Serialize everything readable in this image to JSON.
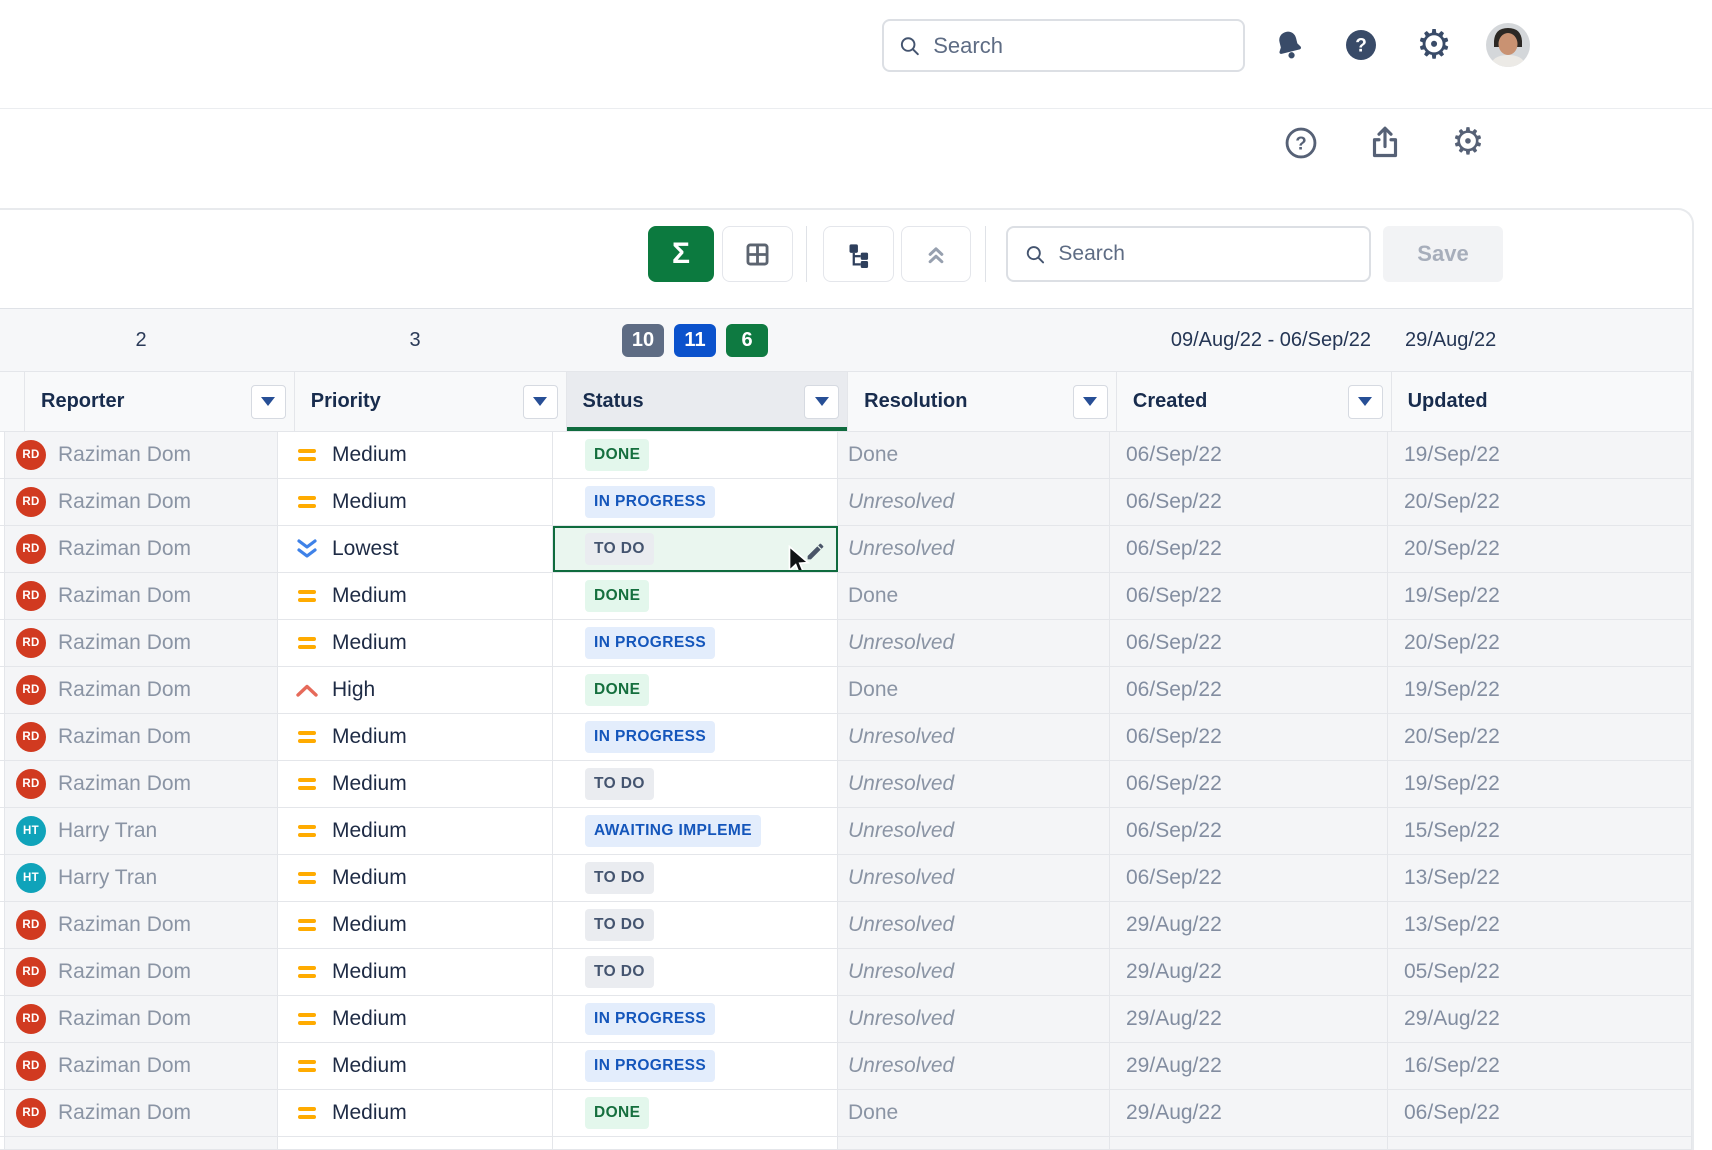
{
  "topbar": {
    "search_placeholder": "Search",
    "icons": [
      "notifications-bell",
      "help",
      "settings-gear",
      "user-avatar"
    ]
  },
  "page_actions": {
    "icons": [
      "help-circle",
      "share-export",
      "settings-gear"
    ]
  },
  "toolbar": {
    "buttons": [
      "sum-sigma",
      "grid-view",
      "tree-view",
      "collapse-all"
    ],
    "search_placeholder": "Search",
    "save_label": "Save"
  },
  "summary": {
    "reporter_count": "2",
    "priority_count": "3",
    "status_counts": [
      {
        "value": "10",
        "color": "#5E6C84"
      },
      {
        "value": "11",
        "color": "#0B52CC"
      },
      {
        "value": "6",
        "color": "#0E7A41"
      }
    ],
    "created_range": "09/Aug/22 - 06/Sep/22",
    "updated_value": "29/Aug/22"
  },
  "columns": [
    {
      "key": "reporter",
      "label": "Reporter",
      "has_dropdown": true
    },
    {
      "key": "priority",
      "label": "Priority",
      "has_dropdown": true
    },
    {
      "key": "status",
      "label": "Status",
      "has_dropdown": true
    },
    {
      "key": "resolution",
      "label": "Resolution",
      "has_dropdown": true
    },
    {
      "key": "created",
      "label": "Created",
      "has_dropdown": true
    },
    {
      "key": "updated",
      "label": "Updated",
      "has_dropdown": false
    }
  ],
  "status_styles": {
    "done": {
      "bg": "#E3F7EC",
      "fg": "#156F3E"
    },
    "inprogress": {
      "bg": "#E3EDFC",
      "fg": "#1456BB"
    },
    "todo": {
      "bg": "#EAECF0",
      "fg": "#44546F"
    }
  },
  "priority_colors": {
    "medium": "#FFAB00",
    "high": "#E66A5A",
    "lowest": "#3F82E8"
  },
  "colors": {
    "selection_green": "#0F6B3E",
    "sigma_green": "#0C7A3F",
    "border": "#E4E6EA"
  },
  "rows": [
    {
      "initials": "RD",
      "name": "Raziman Dom",
      "avatar_color": "#D13A20",
      "priority": "Medium",
      "priority_icon": "medium",
      "status": "DONE",
      "status_type": "done",
      "selected": false,
      "resolution": "Done",
      "resolution_italic": false,
      "created": "06/Sep/22",
      "updated": "19/Sep/22"
    },
    {
      "initials": "RD",
      "name": "Raziman Dom",
      "avatar_color": "#D13A20",
      "priority": "Medium",
      "priority_icon": "medium",
      "status": "IN PROGRESS",
      "status_type": "inprogress",
      "selected": false,
      "resolution": "Unresolved",
      "resolution_italic": true,
      "created": "06/Sep/22",
      "updated": "20/Sep/22"
    },
    {
      "initials": "RD",
      "name": "Raziman Dom",
      "avatar_color": "#D13A20",
      "priority": "Lowest",
      "priority_icon": "lowest",
      "status": "TO DO",
      "status_type": "todo",
      "selected": true,
      "resolution": "Unresolved",
      "resolution_italic": true,
      "created": "06/Sep/22",
      "updated": "20/Sep/22"
    },
    {
      "initials": "RD",
      "name": "Raziman Dom",
      "avatar_color": "#D13A20",
      "priority": "Medium",
      "priority_icon": "medium",
      "status": "DONE",
      "status_type": "done",
      "selected": false,
      "resolution": "Done",
      "resolution_italic": false,
      "created": "06/Sep/22",
      "updated": "19/Sep/22"
    },
    {
      "initials": "RD",
      "name": "Raziman Dom",
      "avatar_color": "#D13A20",
      "priority": "Medium",
      "priority_icon": "medium",
      "status": "IN PROGRESS",
      "status_type": "inprogress",
      "selected": false,
      "resolution": "Unresolved",
      "resolution_italic": true,
      "created": "06/Sep/22",
      "updated": "20/Sep/22"
    },
    {
      "initials": "RD",
      "name": "Raziman Dom",
      "avatar_color": "#D13A20",
      "priority": "High",
      "priority_icon": "high",
      "status": "DONE",
      "status_type": "done",
      "selected": false,
      "resolution": "Done",
      "resolution_italic": false,
      "created": "06/Sep/22",
      "updated": "19/Sep/22"
    },
    {
      "initials": "RD",
      "name": "Raziman Dom",
      "avatar_color": "#D13A20",
      "priority": "Medium",
      "priority_icon": "medium",
      "status": "IN PROGRESS",
      "status_type": "inprogress",
      "selected": false,
      "resolution": "Unresolved",
      "resolution_italic": true,
      "created": "06/Sep/22",
      "updated": "20/Sep/22"
    },
    {
      "initials": "RD",
      "name": "Raziman Dom",
      "avatar_color": "#D13A20",
      "priority": "Medium",
      "priority_icon": "medium",
      "status": "TO DO",
      "status_type": "todo",
      "selected": false,
      "resolution": "Unresolved",
      "resolution_italic": true,
      "created": "06/Sep/22",
      "updated": "19/Sep/22"
    },
    {
      "initials": "HT",
      "name": "Harry Tran",
      "avatar_color": "#0FA3BA",
      "priority": "Medium",
      "priority_icon": "medium",
      "status": "AWAITING IMPLEME",
      "status_type": "inprogress",
      "selected": false,
      "resolution": "Unresolved",
      "resolution_italic": true,
      "created": "06/Sep/22",
      "updated": "15/Sep/22"
    },
    {
      "initials": "HT",
      "name": "Harry Tran",
      "avatar_color": "#0FA3BA",
      "priority": "Medium",
      "priority_icon": "medium",
      "status": "TO DO",
      "status_type": "todo",
      "selected": false,
      "resolution": "Unresolved",
      "resolution_italic": true,
      "created": "06/Sep/22",
      "updated": "13/Sep/22"
    },
    {
      "initials": "RD",
      "name": "Raziman Dom",
      "avatar_color": "#D13A20",
      "priority": "Medium",
      "priority_icon": "medium",
      "status": "TO DO",
      "status_type": "todo",
      "selected": false,
      "resolution": "Unresolved",
      "resolution_italic": true,
      "created": "29/Aug/22",
      "updated": "13/Sep/22"
    },
    {
      "initials": "RD",
      "name": "Raziman Dom",
      "avatar_color": "#D13A20",
      "priority": "Medium",
      "priority_icon": "medium",
      "status": "TO DO",
      "status_type": "todo",
      "selected": false,
      "resolution": "Unresolved",
      "resolution_italic": true,
      "created": "29/Aug/22",
      "updated": "05/Sep/22"
    },
    {
      "initials": "RD",
      "name": "Raziman Dom",
      "avatar_color": "#D13A20",
      "priority": "Medium",
      "priority_icon": "medium",
      "status": "IN PROGRESS",
      "status_type": "inprogress",
      "selected": false,
      "resolution": "Unresolved",
      "resolution_italic": true,
      "created": "29/Aug/22",
      "updated": "29/Aug/22"
    },
    {
      "initials": "RD",
      "name": "Raziman Dom",
      "avatar_color": "#D13A20",
      "priority": "Medium",
      "priority_icon": "medium",
      "status": "IN PROGRESS",
      "status_type": "inprogress",
      "selected": false,
      "resolution": "Unresolved",
      "resolution_italic": true,
      "created": "29/Aug/22",
      "updated": "16/Sep/22"
    },
    {
      "initials": "RD",
      "name": "Raziman Dom",
      "avatar_color": "#D13A20",
      "priority": "Medium",
      "priority_icon": "medium",
      "status": "DONE",
      "status_type": "done",
      "selected": false,
      "resolution": "Done",
      "resolution_italic": false,
      "created": "29/Aug/22",
      "updated": "06/Sep/22"
    }
  ]
}
